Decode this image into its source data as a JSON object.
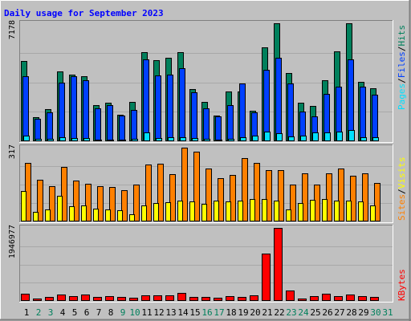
{
  "title": "Daily usage for September 2023",
  "colors": {
    "hits": "#00805c",
    "files": "#0040ff",
    "pages": "#00e0ff",
    "visits": "#ffff00",
    "sites": "#ff8000",
    "kbytes": "#ff0000",
    "title": "#0000ff",
    "weekday": "#000000",
    "weekend": "#00805c",
    "panel_bg": "#c0c0c0"
  },
  "chart_data": [
    {
      "type": "bar",
      "panel": "top",
      "ymax_label": "7178",
      "ylim": [
        0,
        7178
      ],
      "categories": [
        "1",
        "2",
        "3",
        "4",
        "5",
        "6",
        "7",
        "8",
        "9",
        "10",
        "11",
        "12",
        "13",
        "14",
        "15",
        "16",
        "17",
        "18",
        "19",
        "20",
        "21",
        "22",
        "23",
        "24",
        "25",
        "26",
        "27",
        "28",
        "29",
        "30",
        "31"
      ],
      "legend": [
        "Pages",
        "Files",
        "Hits"
      ],
      "legend_sep": "/",
      "series": [
        {
          "name": "Hits",
          "values": [
            4900,
            1450,
            1950,
            4250,
            4050,
            3950,
            2200,
            2350,
            1600,
            2400,
            5400,
            4950,
            5100,
            5400,
            3150,
            2400,
            1550,
            3050,
            3050,
            1850,
            5700,
            7178,
            4150,
            2350,
            2150,
            3700,
            5450,
            7178,
            3600,
            3200,
            0
          ]
        },
        {
          "name": "Files",
          "values": [
            3950,
            1350,
            1750,
            3550,
            3950,
            3700,
            2000,
            2200,
            1550,
            1900,
            5000,
            4000,
            4050,
            4450,
            3000,
            2000,
            1500,
            2200,
            3500,
            1750,
            4350,
            5100,
            3500,
            1800,
            1500,
            2900,
            3300,
            5000,
            3300,
            2850,
            0
          ]
        },
        {
          "name": "Pages",
          "values": [
            350,
            130,
            170,
            250,
            200,
            200,
            100,
            120,
            100,
            150,
            550,
            200,
            220,
            220,
            200,
            150,
            100,
            170,
            250,
            350,
            600,
            500,
            300,
            350,
            550,
            550,
            600,
            700,
            250,
            220,
            0
          ]
        }
      ]
    },
    {
      "type": "bar",
      "panel": "middle",
      "ymax_label": "317",
      "ylim": [
        0,
        317
      ],
      "legend": [
        "Sites",
        "Visits"
      ],
      "legend_sep": "/",
      "series": [
        {
          "name": "Visits",
          "values": [
            131,
            43,
            52,
            110,
            65,
            70,
            55,
            52,
            48,
            30,
            68,
            78,
            83,
            88,
            87,
            75,
            90,
            85,
            90,
            95,
            96,
            88,
            52,
            78,
            92,
            95,
            88,
            90,
            85,
            68,
            0
          ]
        },
        {
          "name": "Sites",
          "values": [
            251,
            180,
            152,
            233,
            176,
            162,
            153,
            149,
            136,
            158,
            244,
            249,
            205,
            317,
            300,
            228,
            186,
            200,
            271,
            251,
            219,
            222,
            160,
            206,
            160,
            207,
            227,
            197,
            207,
            165,
            0
          ]
        }
      ]
    },
    {
      "type": "bar",
      "panel": "bottom",
      "ymax_label": "1946977",
      "ylim": [
        0,
        1946977
      ],
      "legend": [
        "KBytes"
      ],
      "series": [
        {
          "name": "KBytes",
          "values": [
            200000,
            60000,
            100000,
            180000,
            130000,
            180000,
            100000,
            120000,
            100000,
            80000,
            160000,
            140000,
            150000,
            220000,
            100000,
            100000,
            90000,
            120000,
            110000,
            150000,
            1266000,
            1946977,
            270000,
            70000,
            130000,
            200000,
            130000,
            180000,
            130000,
            100000,
            0
          ]
        }
      ]
    }
  ],
  "days": [
    {
      "label": "1",
      "weekend": false
    },
    {
      "label": "2",
      "weekend": true
    },
    {
      "label": "3",
      "weekend": true
    },
    {
      "label": "4",
      "weekend": false
    },
    {
      "label": "5",
      "weekend": false
    },
    {
      "label": "6",
      "weekend": false
    },
    {
      "label": "7",
      "weekend": false
    },
    {
      "label": "8",
      "weekend": false
    },
    {
      "label": "9",
      "weekend": true
    },
    {
      "label": "10",
      "weekend": true
    },
    {
      "label": "11",
      "weekend": false
    },
    {
      "label": "12",
      "weekend": false
    },
    {
      "label": "13",
      "weekend": false
    },
    {
      "label": "14",
      "weekend": false
    },
    {
      "label": "15",
      "weekend": false
    },
    {
      "label": "16",
      "weekend": true
    },
    {
      "label": "17",
      "weekend": true
    },
    {
      "label": "18",
      "weekend": false
    },
    {
      "label": "19",
      "weekend": false
    },
    {
      "label": "20",
      "weekend": false
    },
    {
      "label": "21",
      "weekend": false
    },
    {
      "label": "22",
      "weekend": false
    },
    {
      "label": "23",
      "weekend": true
    },
    {
      "label": "24",
      "weekend": true
    },
    {
      "label": "25",
      "weekend": false
    },
    {
      "label": "26",
      "weekend": false
    },
    {
      "label": "27",
      "weekend": false
    },
    {
      "label": "28",
      "weekend": false
    },
    {
      "label": "29",
      "weekend": false
    },
    {
      "label": "30",
      "weekend": true
    },
    {
      "label": "31",
      "weekend": true
    }
  ]
}
